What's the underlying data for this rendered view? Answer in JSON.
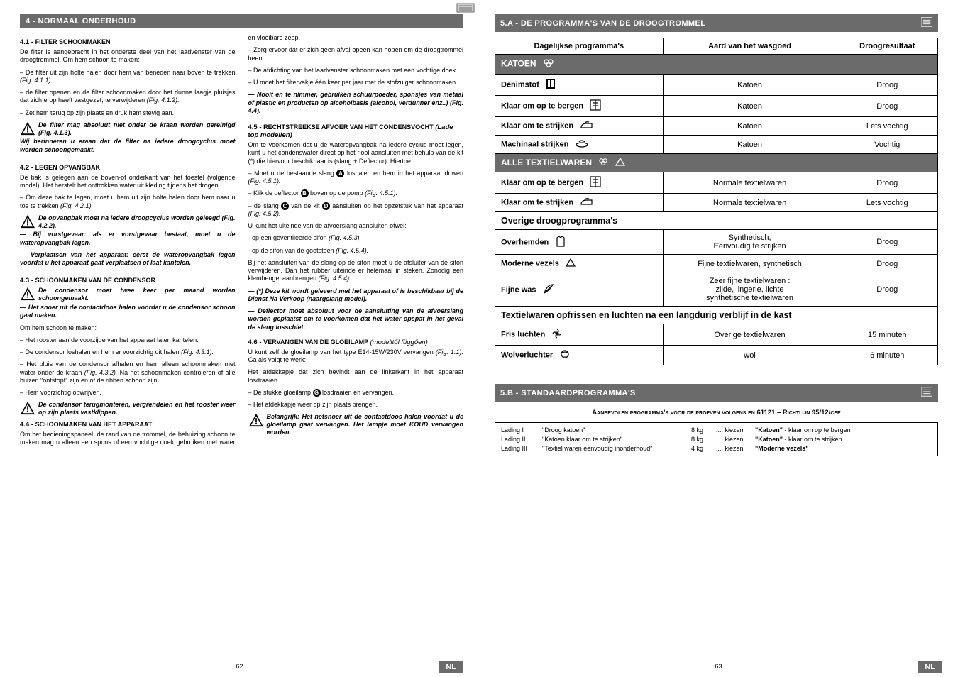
{
  "left": {
    "section_bar": "4 - NORMAAL ONDERHOUD",
    "s41_title_num": "4.1 - ",
    "s41_title_sc": "Filter schoonmaken",
    "s41_p1": "De filter is aangebracht in het onderste deel van het laadvenster van de droogtrommel. Om hem schoon te maken:",
    "s41_p2": "– De filter uit zijn holte halen door hem van beneden naar boven te trekken ",
    "s41_p2_ref": "(Fig. 4.1.1).",
    "s41_p3": "– de filter openen en de filter schoonmaken door het dunne laagje pluisjes dat zich erop heeft vastgezet, te verwijderen ",
    "s41_p3_ref": "(Fig. 4.1.2).",
    "s41_p4": "– Zet hem terug op zijn plaats en druk hem stevig aan.",
    "s41_warn": "De filter mag absoluut niet onder de kraan worden gereinigd ",
    "s41_warn_ref": "(Fig. 4.1.3).",
    "s41_follow": "Wij herinneren u eraan dat de filter na iedere droogcyclus moet worden schoongemaakt.",
    "s42_title_num": "4.2 - ",
    "s42_title_sc": "Legen opvangbak",
    "s42_p1": "De bak is gelegen aan de boven-of onderkant van het toestel (volgende model). Het herstelt het onttrokken water uit kleding tijdens het drogen.",
    "s42_p2": "– Om deze bak te legen, moet u hem uit zijn holte halen door hem naar u toe te trekken ",
    "s42_p2_ref": "(Fig. 4.2.1).",
    "s42_warn": "De opvangbak moet na iedere droogcyclus worden geleegd ",
    "s42_warn_ref": "(Fig. 4.2.2).",
    "s42_f1": "— Bij vorstgevaar: als er vorstgevaar bestaat, moet u de wateropvangbak legen.",
    "s42_f2": "— Verplaatsen van het apparaat: eerst de wateropvangbak legen voordat u het apparaat gaat verplaatsen of laat kantelen.",
    "s43_title_num": "4.3 - ",
    "s43_title_sc": "Schoonmaken van de condensor",
    "s43_warn": "De condensor moet twee keer per maand worden schoongemaakt.",
    "s43_f1": "— Het snoer uit de contactdoos halen voordat u de condensor schoon gaat maken.",
    "s43_p0": "Om hem schoon te maken:",
    "s43_p1": "– Het rooster aan de voorzijde van het apparaat laten kantelen.",
    "s43_p2": "– De condensor loshalen en hem er voorzichtig uit halen ",
    "s43_p2_ref": "(Fig. 4.3.1).",
    "s43_p3a": "– Het pluis van de condensor afhalen en hem alleen schoonmaken met water onder de kraan ",
    "s43_p3_ref": "(Fig. 4.3.2).",
    "s43_p3b": " Na het schoonmaken controleren of alle buizen \"ontstopt\" zijn en of de ribben schoon zijn.",
    "s43_p4": "– Hem voorzichtig opwrijven.",
    "s43_warn2": "De condensor terugmonteren, vergrendelen en het rooster weer op zijn plaats vastklippen.",
    "s44_title_num": "4.4 - ",
    "s44_title_sc": "Schoonmaken van het apparaat",
    "s44_p1": "Om het bedieningspaneel, de rand van de trommel, de behuizing schoon te maken mag u alleen een spons of een vochtige doek gebruiken met water en vloeibare zeep.",
    "s44_p2": "– Zorg ervoor dat er zich geen afval opeen kan hopen om de droogtrommel heen.",
    "s44_p3": "– De afdichting van het laadvenster schoonmaken met een vochtige doek.",
    "s44_p4": "– U moet het filtervakje één keer per jaar met de stofzuiger schoonmaken.",
    "s44_f1": "— Nooit en te nimmer, gebruiken schuurpoeder, sponsjes van metaal of plastic en producten op alcoholbasis (alcohol, verdunner enz..) ",
    "s44_f1_ref": "(Fig. 4.4).",
    "s45_title_num": "4.5 - ",
    "s45_title_sc": "Rechtstreekse afvoer van het condensvocht ",
    "s45_title_em": "(Lade top modellen)",
    "s45_p1": "Om te voorkomen dat u de wateropvangbak na iedere cyclus moet legen, kunt u het condenswater direct op het riool aansluiten met behulp van de kit (*) die hiervoor beschikbaar is (slang + Deflector). Hiertoe:",
    "s45_p2a": "– Moet u de bestaande slang ",
    "s45_p2b": " loshalen en hem in het apparaat duwen ",
    "s45_p2_ref": "(Fig. 4.5.1).",
    "s45_p3a": "– Klik de deflector ",
    "s45_p3b": " boven op de pomp ",
    "s45_p3_ref": "(Fig. 4.5.1).",
    "s45_p4a": "– de slang ",
    "s45_p4b": " van de kit ",
    "s45_p4c": " aansluiten op het opzetstuk van het apparaat ",
    "s45_p4_ref": "(Fig. 4.5.2).",
    "s45_p5": "U kunt het uiteinde van de afvoerslang aansluiten ofwel:",
    "s45_p6": "- op een geventileerde sifon ",
    "s45_p6_ref": "(Fig. 4.5.3).",
    "s45_p7": "- op de sifon van de gootsteen ",
    "s45_p7_ref": "(Fig. 4.5.4).",
    "s45_p8": "Bij het aansluiten van de slang op de sifon moet u de afsluiter van de sifon verwijderen. Dan het rubber uiteinde er helemaal in steken. Zonodig een klembeugel aanbrengen ",
    "s45_p8_ref": "(Fig. 4.5.4).",
    "s45_f1": "— (*) Deze kit wordt geleverd met het apparaat of is beschikbaar bij de Dienst Na Verkoop (naargelang model).",
    "s45_f2": "— Deflector moet absoluut voor de aansluiting van de afvoerslang worden geplaatst om te voorkomen dat het water opspat in het geval de slang losschiet.",
    "s46_title_num": "4.6 - ",
    "s46_title_sc": "Vervangen van de gloeilamp ",
    "s46_title_em": "(modelltől függően)",
    "s46_p1": "U kunt zelf de gloeilamp van het type E14-15W/230V vervangen ",
    "s46_p1_ref": "(Fig. 1.1).",
    "s46_p1b": " Ga als volgt te werk:",
    "s46_p2": "Het afdekkapje dat zich bevindt aan de linkerkant in het apparaat losdraaien.",
    "s46_p3a": "– De stukke gloeilamp ",
    "s46_p3b": " losdraaien en vervangen.",
    "s46_p4": "– Het afdekkapje weer op zijn plaats brengen.",
    "s46_warn": "Belangrijk: Het netsnoer uit de contactdoos halen voordat u de gloeilamp gaat vervangen. Het lampje moet KOUD vervangen worden.",
    "letter_A": "A",
    "letter_B": "B",
    "letter_C": "C",
    "letter_D": "D",
    "letter_G": "G",
    "page_num": "62",
    "badge": "NL"
  },
  "right": {
    "section_bar_a": "5.A - DE PROGRAMMA'S VAN DE DROOGTROMMEL",
    "table": {
      "head": [
        "Dagelijkse programma's",
        "Aard van het wasgoed",
        "Droogresultaat"
      ],
      "group1": "KATOEN",
      "rows1": [
        {
          "p": "Denimstof",
          "a": "Katoen",
          "r": "Droog",
          "icon": "jeans"
        },
        {
          "p": "Klaar om op te bergen",
          "a": "Katoen",
          "r": "Droog",
          "icon": "cupboard"
        },
        {
          "p": "Klaar om te strijken",
          "a": "Katoen",
          "r": "Lets vochtig",
          "icon": "iron"
        },
        {
          "p": "Machinaal strijken",
          "a": "Katoen",
          "r": "Vochtig",
          "icon": "roller"
        }
      ],
      "group2": "ALLE TEXTIELWAREN",
      "rows2": [
        {
          "p": "Klaar om op te bergen",
          "a": "Normale textielwaren",
          "r": "Droog",
          "icon": "cupboard"
        },
        {
          "p": "Klaar om te strijken",
          "a": "Normale textielwaren",
          "r": "Lets vochtig",
          "icon": "iron"
        }
      ],
      "group3": "Overige droogprogramma's",
      "rows3": [
        {
          "p": "Overhemden",
          "a": "Synthetisch,\nEenvoudig te strijken",
          "r": "Droog",
          "icon": "shirt"
        },
        {
          "p": "Moderne vezels",
          "a": "Fijne textielwaren, synthetisch",
          "r": "Droog",
          "icon": "triangle"
        },
        {
          "p": "Fijne was",
          "a": "Zeer fijne textielwaren :\nzijde, lingerie, lichte\nsynthetische textielwaren",
          "r": "Droog",
          "icon": "feather"
        }
      ],
      "group4": "Textielwaren opfrissen en luchten na een langdurig verblijf in de kast",
      "rows4": [
        {
          "p": "Fris luchten",
          "a": "Overige textielwaren",
          "r": "15 minuten",
          "icon": "fan"
        },
        {
          "p": "Wolverluchter",
          "a": "wol",
          "r": "6 minuten",
          "icon": "wool"
        }
      ]
    },
    "section_bar_b": "5.B - STANDAARDPROGRAMMA'S",
    "rec_title": "Aanbevolen programma's voor de proeven volgens en 61121 – Richtlijn 95/12/cee",
    "rec_rows": [
      {
        "l": "Lading I",
        "d": "\"Droog katoen\"",
        "w": "8 kg",
        "k": ".... kiezen",
        "p": "\"Katoen\" - klaar om op te bergen"
      },
      {
        "l": "Lading II",
        "d": "\"Katoen klaar om te strijken\"",
        "w": "8 kg",
        "k": ".... kiezen",
        "p": "\"Katoen\" - klaar om te strijken"
      },
      {
        "l": "Lading III",
        "d": "\"Textiel waren eenvoudig inonderhoud\"",
        "w": "4 kg",
        "k": ".... kiezen",
        "p": "\"Moderne vezels\""
      }
    ],
    "page_num": "63",
    "badge": "NL"
  }
}
